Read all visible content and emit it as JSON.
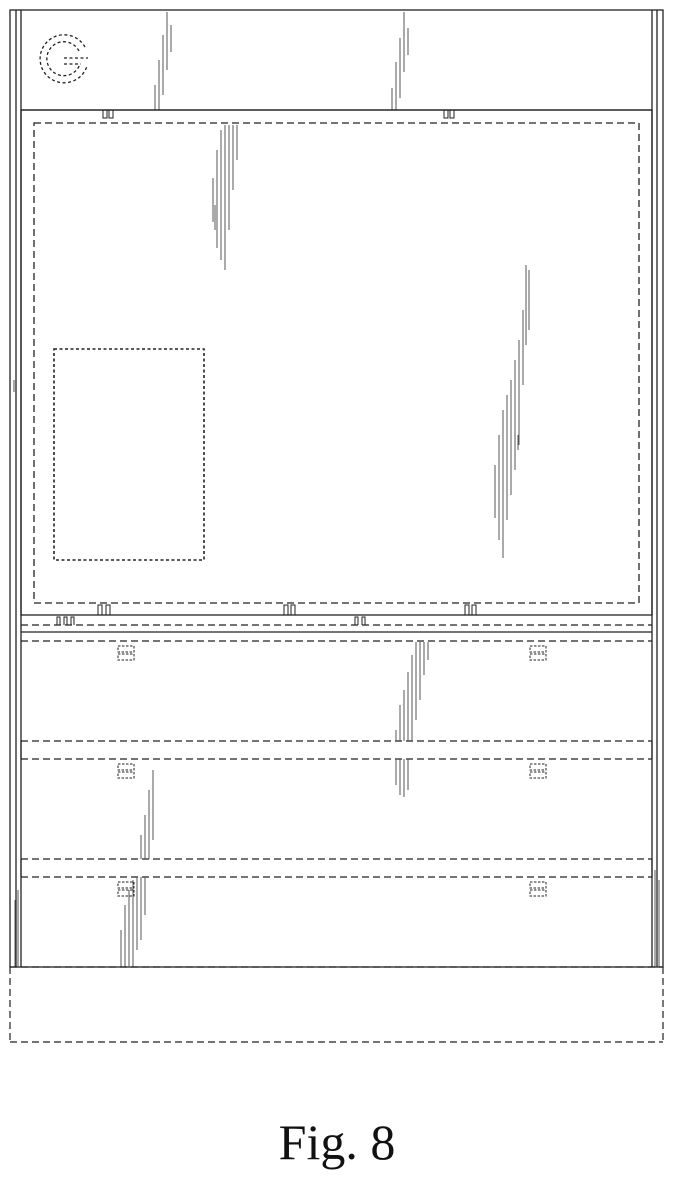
{
  "figure": {
    "caption": "Fig. 8",
    "line_color": "#222222",
    "shade_color": "#555555"
  },
  "logo": {
    "icon": "google-g-logo"
  }
}
